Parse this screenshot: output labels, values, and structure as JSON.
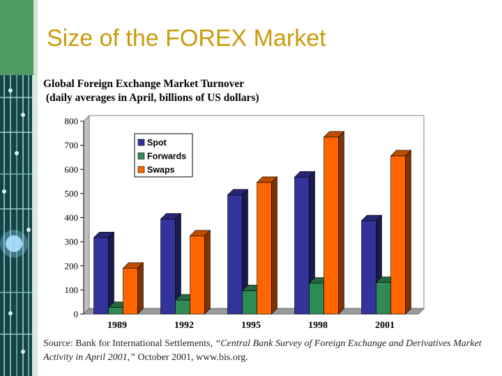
{
  "slide": {
    "title": "Size of the FOREX Market"
  },
  "chart_heading": {
    "line1": "Global Foreign Exchange Market Turnover",
    "line2": " (daily averages in April, billions of US dollars)"
  },
  "source": {
    "prefix": "Source: Bank for International Settlements, ",
    "title": "“Central Bank Survey of Foreign Exchange and Derivatives Market Activity in April 2001,”",
    "suffix": " October 2001, www.bis.org."
  },
  "colors": {
    "title": "#c89b0a",
    "spot": "#33339c",
    "forwards": "#2e8b57",
    "swaps": "#ff6600"
  },
  "chart_data": {
    "type": "bar",
    "categories": [
      "1989",
      "1992",
      "1995",
      "1998",
      "2001"
    ],
    "series": [
      {
        "name": "Spot",
        "values": [
          317,
          394,
          494,
          568,
          387
        ]
      },
      {
        "name": "Forwards",
        "values": [
          27,
          58,
          97,
          128,
          131
        ]
      },
      {
        "name": "Swaps",
        "values": [
          190,
          324,
          546,
          734,
          656
        ]
      }
    ],
    "ylim": [
      0,
      800
    ],
    "yticks": [
      0,
      100,
      200,
      300,
      400,
      500,
      600,
      700,
      800
    ],
    "grid": false,
    "legend": "top-left",
    "style": "3d-column"
  }
}
